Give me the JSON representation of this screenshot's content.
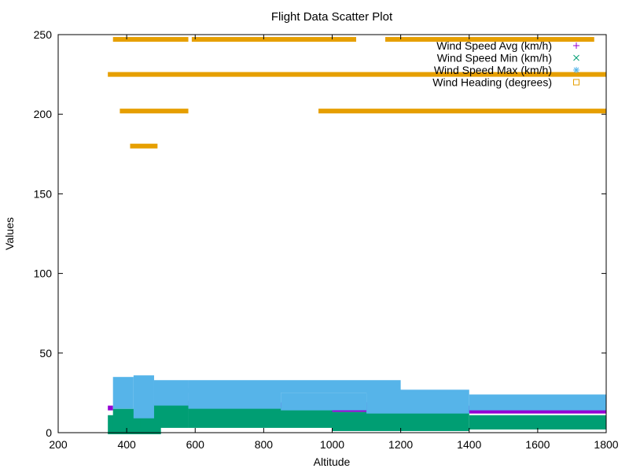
{
  "chart_data": {
    "type": "scatter",
    "title": "Flight Data Scatter Plot",
    "xlabel": "Altitude",
    "ylabel": "Values",
    "xlim": [
      200,
      1800
    ],
    "ylim": [
      0,
      250
    ],
    "xticks": [
      200,
      400,
      600,
      800,
      1000,
      1200,
      1400,
      1600,
      1800
    ],
    "yticks": [
      0,
      50,
      100,
      150,
      200,
      250
    ],
    "grid": false,
    "legend_position": "top-right",
    "series": [
      {
        "name": "Wind Speed Avg (km/h)",
        "marker": "plus",
        "color": "#9400d3",
        "bands": [
          {
            "x": [
              345,
              360
            ],
            "y": [
              15,
              16
            ]
          },
          {
            "x": [
              580,
              610
            ],
            "y": [
              16,
              19
            ]
          },
          {
            "x": [
              610,
              1000
            ],
            "y": [
              12,
              18
            ]
          },
          {
            "x": [
              1000,
              1200
            ],
            "y": [
              14,
              18
            ]
          },
          {
            "x": [
              1200,
              1340
            ],
            "y": [
              16,
              19
            ]
          },
          {
            "x": [
              1340,
              1800
            ],
            "y": [
              13,
              16
            ]
          }
        ]
      },
      {
        "name": "Wind Speed Min (km/h)",
        "marker": "cross",
        "color": "#009e73",
        "bands": [
          {
            "x": [
              345,
              500
            ],
            "y": [
              0,
              10
            ]
          },
          {
            "x": [
              360,
              440
            ],
            "y": [
              0,
              14
            ]
          },
          {
            "x": [
              440,
              580
            ],
            "y": [
              4,
              17
            ]
          },
          {
            "x": [
              580,
              1000
            ],
            "y": [
              4,
              15
            ]
          },
          {
            "x": [
              1000,
              1400
            ],
            "y": [
              2,
              12
            ]
          },
          {
            "x": [
              1400,
              1800
            ],
            "y": [
              3,
              10
            ]
          }
        ]
      },
      {
        "name": "Wind Speed Max (km/h)",
        "marker": "star",
        "color": "#56b4e9",
        "bands": [
          {
            "x": [
              360,
              420
            ],
            "y": [
              16,
              34
            ]
          },
          {
            "x": [
              420,
              480
            ],
            "y": [
              10,
              35
            ]
          },
          {
            "x": [
              480,
              580
            ],
            "y": [
              18,
              32
            ]
          },
          {
            "x": [
              580,
              1200
            ],
            "y": [
              26,
              32
            ]
          },
          {
            "x": [
              580,
              850
            ],
            "y": [
              16,
              27
            ]
          },
          {
            "x": [
              850,
              1100
            ],
            "y": [
              15,
              24
            ]
          },
          {
            "x": [
              1100,
              1400
            ],
            "y": [
              13,
              26
            ]
          },
          {
            "x": [
              1400,
              1800
            ],
            "y": [
              15,
              23
            ]
          }
        ]
      },
      {
        "name": "Wind Heading (degrees)",
        "marker": "square",
        "color": "#e69f00",
        "bands": [
          {
            "x": [
              360,
              580
            ],
            "y": [
              246.5,
              247.5
            ]
          },
          {
            "x": [
              590,
              1070
            ],
            "y": [
              246.5,
              247.5
            ]
          },
          {
            "x": [
              1155,
              1765
            ],
            "y": [
              246.5,
              247.5
            ]
          },
          {
            "x": [
              345,
              1800
            ],
            "y": [
              224.5,
              225.5
            ]
          },
          {
            "x": [
              380,
              580
            ],
            "y": [
              201.5,
              202.5
            ]
          },
          {
            "x": [
              960,
              1800
            ],
            "y": [
              201.5,
              202.5
            ]
          },
          {
            "x": [
              410,
              490
            ],
            "y": [
              179.5,
              180.5
            ]
          }
        ]
      }
    ]
  }
}
